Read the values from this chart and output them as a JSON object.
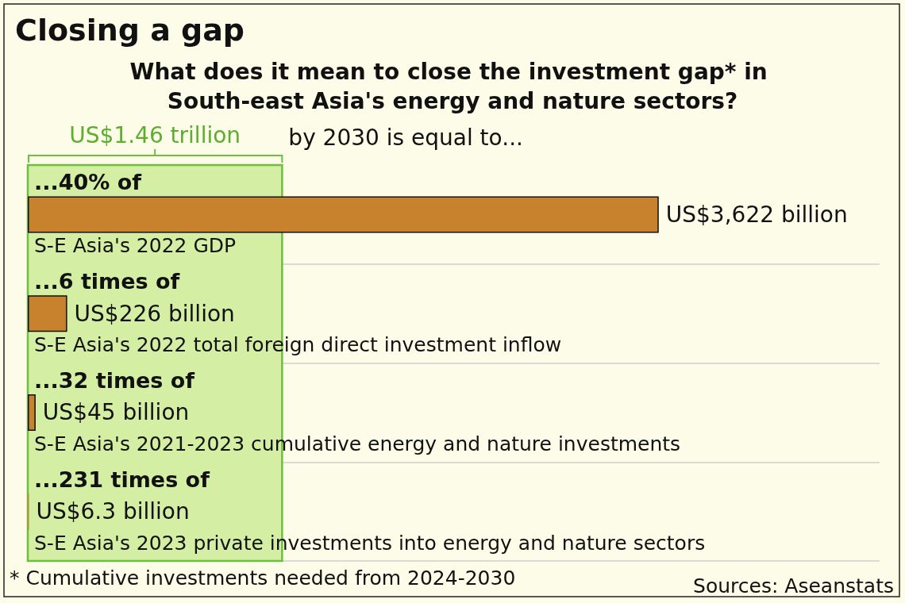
{
  "chart_data": {
    "type": "bar",
    "orientation": "horizontal",
    "title": "Closing a gap",
    "subtitle": "What does it mean to close the investment gap* in South-east Asia's energy and nature sectors?",
    "categories": [
      "S-E Asia's 2022 GDP",
      "S-E Asia's 2022 total foreign direct investment inflow",
      "S-E Asia's 2021-2023 cumulative energy and nature investments",
      "S-E Asia's 2023 private investments into energy and nature sectors"
    ],
    "values": [
      3622000000000,
      226000000000,
      45000000000,
      6300000000
    ],
    "color": "#c8812c",
    "value_labels": [
      "US$3,622 billion",
      "US$226 billion",
      "US$45 billion",
      "US$6.3 billion"
    ],
    "xlim": [
      0,
      4890000000000
    ],
    "bands": [
      {
        "axis": "x",
        "from": 0,
        "to": 1460000000000,
        "label": "US$1.46 trillion",
        "color": "#d4eea3"
      }
    ],
    "annotations": [
      "by 2030 is equal to...",
      "...40% of",
      "...6 times of",
      "...32 times of",
      "...231 times of",
      "* Cumulative investments needed from 2024-2030",
      "Sources: Aseanstats"
    ],
    "grid": "y",
    "tick_labels": "y"
  }
}
